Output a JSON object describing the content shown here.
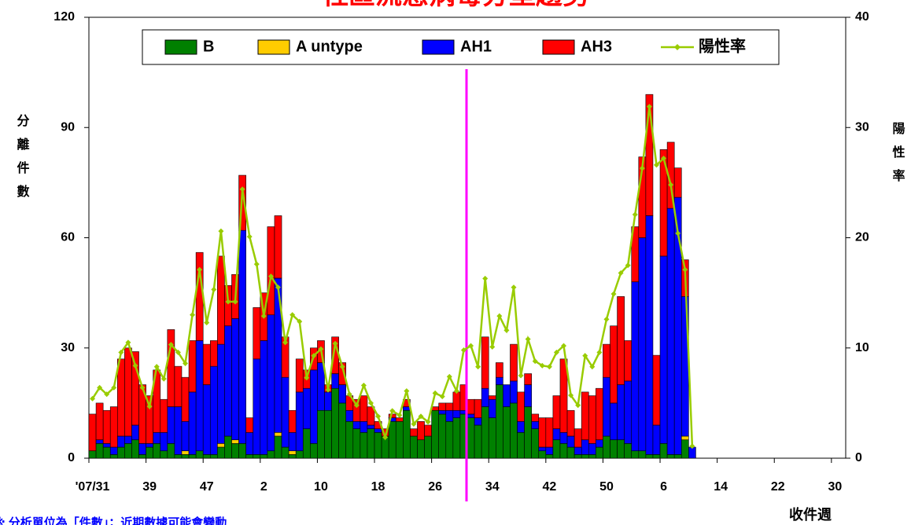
{
  "chart_data": {
    "type": "bar",
    "stacked": true,
    "title": "社區流感病毒分型趨勢",
    "y_label": "分離件數",
    "y2_label": "陽性率",
    "x_label": "收件週",
    "note": "※ 分析單位為「件數」；近期數據可能會變動",
    "categories": [
      "'07/31",
      null,
      null,
      null,
      null,
      null,
      null,
      null,
      "39",
      null,
      null,
      null,
      null,
      null,
      null,
      null,
      "47",
      null,
      null,
      null,
      null,
      null,
      null,
      null,
      "2",
      null,
      null,
      null,
      null,
      null,
      null,
      null,
      "10",
      null,
      null,
      null,
      null,
      null,
      null,
      null,
      "18",
      null,
      null,
      null,
      null,
      null,
      null,
      null,
      "26",
      null,
      null,
      null,
      null,
      null,
      null,
      null,
      "34",
      null,
      null,
      null,
      null,
      null,
      null,
      null,
      "42",
      null,
      null,
      null,
      null,
      null,
      null,
      null,
      "50",
      null,
      null,
      null,
      null,
      null,
      null,
      null,
      "6",
      null,
      null,
      null,
      null,
      null,
      null,
      null,
      "14",
      null,
      null,
      null,
      null,
      null,
      null,
      null,
      "22",
      null,
      null,
      null,
      null,
      null,
      null,
      null,
      "30",
      null
    ],
    "ylim": [
      0,
      120
    ],
    "yticks": [
      0,
      30,
      60,
      90,
      120
    ],
    "y2lim": [
      0,
      40
    ],
    "y2ticks": [
      0,
      10,
      20,
      30,
      40
    ],
    "legend": "top",
    "series": [
      {
        "name": "B",
        "color": "#008000",
        "values": [
          2,
          4,
          3,
          1,
          3,
          4,
          5,
          1,
          3,
          4,
          2,
          4,
          1,
          1,
          1,
          2,
          1,
          1,
          3,
          6,
          4,
          4,
          1,
          1,
          1,
          2,
          6,
          3,
          1,
          2,
          8,
          4,
          13,
          13,
          19,
          15,
          10,
          8,
          7,
          8,
          7,
          6,
          10,
          10,
          13,
          6,
          5,
          6,
          13,
          12,
          10,
          11,
          12,
          11,
          9,
          14,
          11,
          20,
          14,
          15,
          7,
          14,
          8,
          2,
          1,
          5,
          4,
          3,
          1,
          1,
          1,
          3,
          6,
          5,
          5,
          4,
          2,
          2,
          1,
          1,
          4,
          1,
          1,
          5,
          0,
          null,
          null,
          null,
          null,
          null,
          null,
          null,
          null,
          null,
          null,
          null,
          null,
          null,
          null,
          null,
          null,
          null,
          null,
          null,
          null,
          null
        ]
      },
      {
        "name": "A untype",
        "color": "#ffcc00",
        "values": [
          0,
          0,
          0,
          0,
          0,
          0,
          0,
          0,
          0,
          0,
          0,
          0,
          0,
          1,
          0,
          0,
          0,
          0,
          1,
          0,
          1,
          0,
          0,
          0,
          0,
          0,
          1,
          0,
          1,
          0,
          0,
          0,
          0,
          0,
          0,
          0,
          0,
          0,
          0,
          0,
          0,
          0,
          0,
          0,
          0,
          0,
          0,
          0,
          0,
          0,
          0,
          0,
          0,
          0,
          0,
          0,
          0,
          0,
          0,
          0,
          0,
          0,
          0,
          0,
          0,
          0,
          0,
          0,
          0,
          0,
          0,
          0,
          0,
          0,
          0,
          0,
          0,
          0,
          0,
          0,
          0,
          0,
          0,
          1,
          0,
          null,
          null,
          null,
          null,
          null,
          null,
          null,
          null,
          null,
          null,
          null,
          null,
          null,
          null,
          null,
          null,
          null,
          null,
          null,
          null,
          null
        ]
      },
      {
        "name": "AH1",
        "color": "#0000ff",
        "values": [
          0,
          1,
          1,
          2,
          3,
          2,
          4,
          3,
          1,
          3,
          5,
          10,
          13,
          8,
          17,
          30,
          19,
          24,
          27,
          30,
          33,
          58,
          6,
          26,
          31,
          37,
          42,
          19,
          5,
          16,
          11,
          20,
          13,
          5,
          4,
          5,
          3,
          2,
          3,
          1,
          1,
          0,
          1,
          0,
          1,
          0,
          0,
          0,
          0,
          1,
          3,
          2,
          1,
          1,
          2,
          5,
          5,
          2,
          6,
          6,
          3,
          6,
          2,
          1,
          2,
          3,
          3,
          3,
          2,
          4,
          3,
          2,
          16,
          10,
          15,
          17,
          46,
          58,
          65,
          8,
          51,
          67,
          70,
          38,
          3,
          null,
          null,
          null,
          null,
          null,
          null,
          null,
          null,
          null,
          null,
          null,
          null,
          null,
          null,
          null,
          null,
          null,
          null,
          null,
          null,
          null
        ]
      },
      {
        "name": "AH3",
        "color": "#ff0000",
        "values": [
          10,
          10,
          9,
          11,
          21,
          24,
          20,
          16,
          13,
          17,
          9,
          21,
          11,
          12,
          14,
          24,
          11,
          7,
          24,
          11,
          12,
          15,
          4,
          14,
          13,
          24,
          17,
          11,
          6,
          9,
          5,
          6,
          6,
          2,
          10,
          6,
          4,
          6,
          7,
          5,
          2,
          2,
          1,
          1,
          2,
          2,
          5,
          3,
          1,
          2,
          2,
          5,
          7,
          4,
          5,
          14,
          1,
          4,
          0,
          10,
          8,
          3,
          2,
          8,
          8,
          9,
          20,
          7,
          5,
          13,
          13,
          14,
          9,
          21,
          24,
          11,
          15,
          22,
          33,
          19,
          29,
          18,
          8,
          10,
          0,
          null,
          null,
          null,
          null,
          null,
          null,
          null,
          null,
          null,
          null,
          null,
          null,
          null,
          null,
          null,
          null,
          null,
          null,
          null,
          null,
          null
        ]
      },
      {
        "name": "陽性率",
        "color": "#99cc00",
        "type": "line",
        "axis": "y2",
        "values": [
          5.4,
          6.4,
          5.8,
          6.4,
          9.6,
          10.5,
          8.4,
          6.4,
          4.7,
          8.3,
          7.2,
          10.3,
          9.6,
          8.6,
          13.0,
          17.1,
          12.3,
          15.3,
          20.6,
          14.2,
          14.2,
          24.4,
          20.1,
          17.6,
          12.9,
          16.5,
          15.5,
          10.5,
          13.0,
          12.4,
          7.3,
          9.3,
          9.9,
          6.2,
          10.4,
          8.3,
          5.8,
          4.8,
          6.6,
          5.0,
          3.8,
          1.9,
          4.3,
          3.9,
          6.1,
          3.1,
          3.8,
          3.3,
          5.9,
          5.6,
          7.4,
          6.1,
          9.8,
          10.2,
          8.3,
          16.3,
          10.1,
          12.9,
          11.6,
          15.5,
          7.5,
          10.8,
          8.8,
          8.4,
          8.3,
          9.6,
          10.2,
          5.7,
          4.8,
          9.3,
          8.3,
          9.6,
          12.6,
          14.9,
          16.8,
          17.5,
          22.1,
          26.3,
          31.9,
          26.6,
          27.2,
          24.8,
          20.4,
          17.1,
          1.1,
          null,
          null,
          null,
          null,
          null,
          null,
          null,
          null,
          null,
          null,
          null,
          null,
          null,
          null,
          null,
          null,
          null,
          null,
          null,
          null,
          null
        ]
      }
    ]
  }
}
